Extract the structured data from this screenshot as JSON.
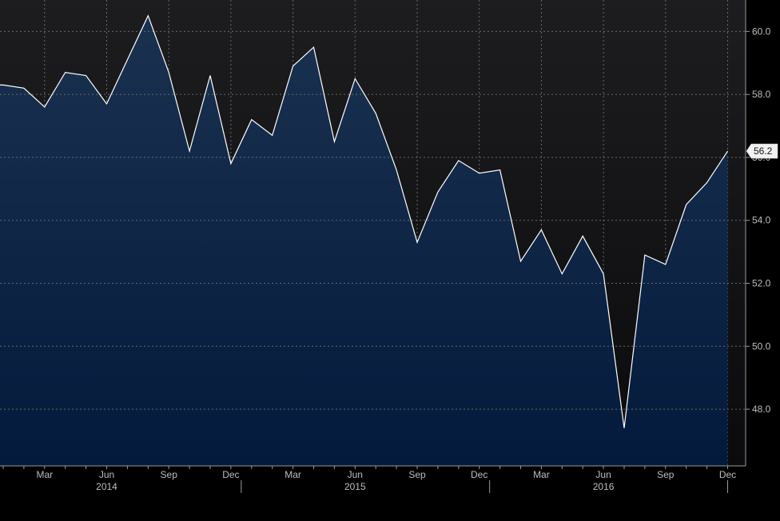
{
  "chart_data": {
    "type": "area",
    "x": [
      "2014-01",
      "2014-02",
      "2014-03",
      "2014-04",
      "2014-05",
      "2014-06",
      "2014-07",
      "2014-08",
      "2014-09",
      "2014-10",
      "2014-11",
      "2014-12",
      "2015-01",
      "2015-02",
      "2015-03",
      "2015-04",
      "2015-05",
      "2015-06",
      "2015-07",
      "2015-08",
      "2015-09",
      "2015-10",
      "2015-11",
      "2015-12",
      "2016-01",
      "2016-02",
      "2016-03",
      "2016-04",
      "2016-05",
      "2016-06",
      "2016-07",
      "2016-08",
      "2016-09",
      "2016-10",
      "2016-11",
      "2016-12"
    ],
    "values": [
      58.3,
      58.2,
      57.6,
      58.7,
      58.6,
      57.7,
      59.1,
      60.5,
      58.7,
      56.2,
      58.6,
      55.8,
      57.2,
      56.7,
      58.9,
      59.5,
      56.5,
      58.5,
      57.4,
      55.6,
      53.3,
      54.9,
      55.9,
      55.5,
      55.6,
      52.7,
      53.7,
      52.3,
      53.5,
      52.3,
      47.4,
      52.9,
      52.6,
      54.5,
      55.2,
      56.2
    ],
    "ylim": [
      46.2,
      61.0
    ],
    "y_ticks": [
      "48.0",
      "50.0",
      "52.0",
      "54.0",
      "56.0",
      "58.0",
      "60.0"
    ],
    "x_ticks": [
      {
        "month": "2014-03",
        "label": "Mar"
      },
      {
        "month": "2014-06",
        "label": "Jun"
      },
      {
        "month": "2014-09",
        "label": "Sep"
      },
      {
        "month": "2014-12",
        "label": "Dec"
      },
      {
        "month": "2015-03",
        "label": "Mar"
      },
      {
        "month": "2015-06",
        "label": "Jun"
      },
      {
        "month": "2015-09",
        "label": "Sep"
      },
      {
        "month": "2015-12",
        "label": "Dec"
      },
      {
        "month": "2016-03",
        "label": "Mar"
      },
      {
        "month": "2016-06",
        "label": "Jun"
      },
      {
        "month": "2016-09",
        "label": "Sep"
      },
      {
        "month": "2016-12",
        "label": "Dec"
      }
    ],
    "year_labels": [
      {
        "month": "2014-06",
        "label": "2014"
      },
      {
        "month": "2015-06",
        "label": "2015"
      },
      {
        "month": "2016-06",
        "label": "2016"
      }
    ],
    "last_value_label": "56.2",
    "grid": true,
    "colors": {
      "background_top": "#1d1d20",
      "background_bottom": "#0b0b0e",
      "fill_top": "#1a3150",
      "fill_bottom": "#041a3c",
      "line": "#ffffff",
      "grid": "#6a6a6a",
      "text": "#bdbdbd"
    }
  }
}
